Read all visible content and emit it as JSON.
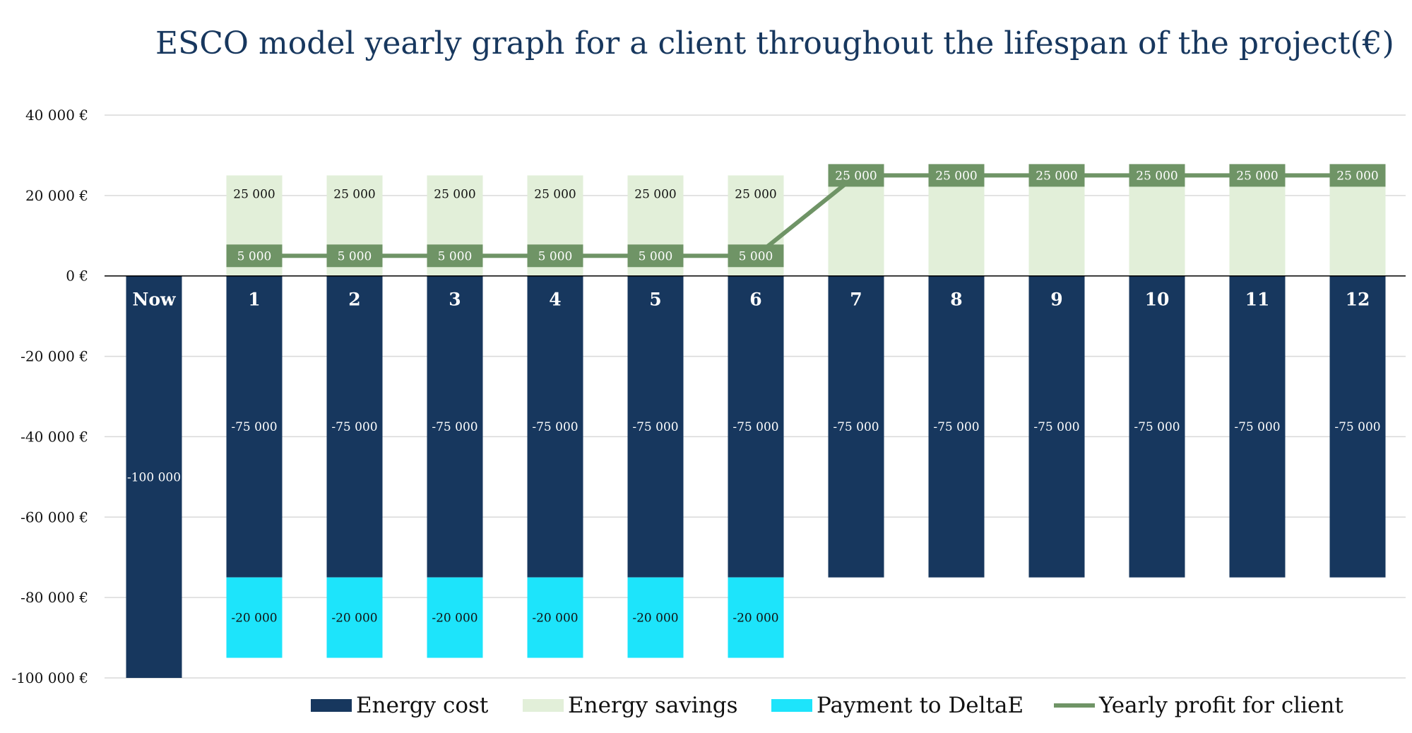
{
  "chart_data": {
    "type": "bar",
    "title": "ESCO model yearly graph for a client throughout the lifespan of the project(€)",
    "categories": [
      "Now",
      "1",
      "2",
      "3",
      "4",
      "5",
      "6",
      "7",
      "8",
      "9",
      "10",
      "11",
      "12"
    ],
    "series": [
      {
        "name": "Energy cost",
        "kind": "bar",
        "color": "#17375e",
        "values": [
          -100000,
          -75000,
          -75000,
          -75000,
          -75000,
          -75000,
          -75000,
          -75000,
          -75000,
          -75000,
          -75000,
          -75000,
          -75000
        ],
        "labels": [
          "-100 000",
          "-75 000",
          "-75 000",
          "-75 000",
          "-75 000",
          "-75 000",
          "-75 000",
          "-75 000",
          "-75 000",
          "-75 000",
          "-75 000",
          "-75 000",
          "-75 000"
        ]
      },
      {
        "name": "Energy savings",
        "kind": "bar",
        "color": "#e2efd9",
        "values": [
          null,
          25000,
          25000,
          25000,
          25000,
          25000,
          25000,
          25000,
          25000,
          25000,
          25000,
          25000,
          25000
        ],
        "labels": [
          "",
          "25 000",
          "25 000",
          "25 000",
          "25 000",
          "25 000",
          "25 000",
          "",
          "",
          "",
          "",
          "",
          ""
        ]
      },
      {
        "name": "Payment to DeltaE",
        "kind": "bar",
        "color": "#1de4fb",
        "values": [
          null,
          -20000,
          -20000,
          -20000,
          -20000,
          -20000,
          -20000,
          null,
          null,
          null,
          null,
          null,
          null
        ],
        "labels": [
          "",
          "-20 000",
          "-20 000",
          "-20 000",
          "-20 000",
          "-20 000",
          "-20 000",
          "",
          "",
          "",
          "",
          "",
          ""
        ]
      },
      {
        "name": "Yearly profit for client",
        "kind": "line",
        "color": "#6f9466",
        "values": [
          null,
          5000,
          5000,
          5000,
          5000,
          5000,
          5000,
          25000,
          25000,
          25000,
          25000,
          25000,
          25000
        ],
        "labels": [
          "",
          "5 000",
          "5 000",
          "5 000",
          "5 000",
          "5 000",
          "5 000",
          "25 000",
          "25 000",
          "25 000",
          "25 000",
          "25 000",
          "25 000"
        ]
      }
    ],
    "yticks": [
      40000,
      20000,
      0,
      -20000,
      -40000,
      -60000,
      -80000,
      -100000
    ],
    "ytick_labels": [
      "40 000 €",
      "20 000 €",
      "0 €",
      "-20 000 €",
      "-40 000 €",
      "-60 000 €",
      "-80 000 €",
      "-100 000 €"
    ],
    "ylim": [
      -100000,
      40000
    ],
    "grid": true,
    "legend_position": "bottom"
  }
}
